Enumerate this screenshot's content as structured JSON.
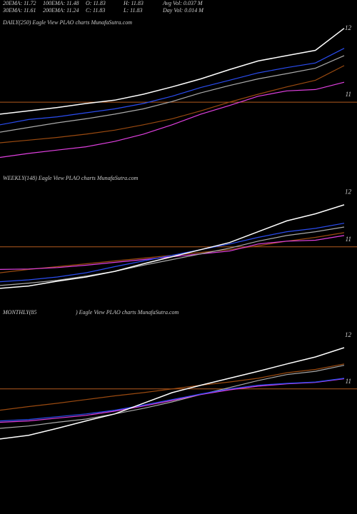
{
  "header": {
    "rows": [
      [
        "20EMA: 11.72",
        "100EMA: 11.48",
        "O: 11.83",
        "H: 11.83",
        "Avg Vol: 0.037 M"
      ],
      [
        "30EMA: 11.61",
        "200EMA: 11.24",
        "C: 11.83",
        "L: 11.83",
        "Day Vol: 0.014  M"
      ]
    ]
  },
  "chart_data": [
    {
      "type": "line",
      "title": "DAILY(250) Eagle  View  PLAO charts MunafaSutra.com",
      "categories": [
        null,
        null,
        null,
        null,
        null,
        null,
        null,
        null,
        null,
        null,
        null,
        null,
        null
      ],
      "ylim": [
        10.1,
        12.3
      ],
      "yticks": [
        11,
        12
      ],
      "reference_line": 11,
      "reference_color": "#b35a1f",
      "series": [
        {
          "color": "#9a4a10",
          "values": [
            10.39,
            10.43,
            10.47,
            10.52,
            10.58,
            10.66,
            10.75,
            10.87,
            11.0,
            11.12,
            11.23,
            11.33,
            11.55
          ]
        },
        {
          "color": "#e040e0",
          "values": [
            10.17,
            10.23,
            10.28,
            10.33,
            10.41,
            10.52,
            10.66,
            10.82,
            10.95,
            11.09,
            11.17,
            11.19,
            11.3
          ]
        },
        {
          "color": "#aaaaaa",
          "values": [
            10.55,
            10.62,
            10.69,
            10.75,
            10.82,
            10.9,
            11.01,
            11.14,
            11.25,
            11.35,
            11.43,
            11.51,
            11.7
          ]
        },
        {
          "color": "#2a4cf0",
          "values": [
            10.66,
            10.74,
            10.78,
            10.84,
            10.9,
            10.98,
            11.09,
            11.22,
            11.33,
            11.44,
            11.52,
            11.59,
            11.81
          ]
        },
        {
          "color": "#ffffff",
          "values": [
            10.82,
            10.87,
            10.92,
            10.98,
            11.03,
            11.12,
            11.23,
            11.35,
            11.49,
            11.62,
            11.7,
            11.78,
            12.11
          ]
        }
      ]
    },
    {
      "type": "line",
      "title": "WEEKLY(148) Eagle  View  PLAO charts MunafaSutra.com",
      "categories": [
        null,
        null,
        null,
        null,
        null,
        null,
        null,
        null,
        null,
        null,
        null,
        null,
        null
      ],
      "ylim": [
        9.8,
        12.6
      ],
      "yticks": [
        11,
        12
      ],
      "reference_line": 11,
      "reference_color": "#b35a1f",
      "series": [
        {
          "color": "#9a4a10",
          "values": [
            10.45,
            10.52,
            10.58,
            10.64,
            10.7,
            10.76,
            10.82,
            10.88,
            10.94,
            11.02,
            11.12,
            11.2,
            11.3
          ]
        },
        {
          "color": "#e040e0",
          "values": [
            10.52,
            10.53,
            10.56,
            10.61,
            10.67,
            10.73,
            10.79,
            10.85,
            10.91,
            11.06,
            11.12,
            11.14,
            11.24
          ]
        },
        {
          "color": "#aaaaaa",
          "values": [
            10.18,
            10.23,
            10.29,
            10.38,
            10.48,
            10.61,
            10.73,
            10.85,
            10.97,
            11.12,
            11.24,
            11.32,
            11.42
          ]
        },
        {
          "color": "#2a4cf0",
          "values": [
            10.26,
            10.3,
            10.36,
            10.45,
            10.58,
            10.7,
            10.82,
            10.94,
            11.06,
            11.2,
            11.32,
            11.39,
            11.5
          ]
        },
        {
          "color": "#ffffff",
          "values": [
            10.12,
            10.17,
            10.27,
            10.36,
            10.48,
            10.64,
            10.79,
            10.94,
            11.09,
            11.32,
            11.55,
            11.7,
            11.89
          ]
        }
      ]
    },
    {
      "type": "line",
      "title": "MONTHLY(85",
      "subtitle": ") Eagle  View  PLAO charts MunafaSutra.com",
      "categories": [
        null,
        null,
        null,
        null,
        null,
        null,
        null,
        null,
        null,
        null,
        null,
        null,
        null
      ],
      "ylim": [
        8.3,
        12.8
      ],
      "yticks": [
        11,
        12
      ],
      "reference_line": 11,
      "reference_color": "#b35a1f",
      "series": [
        {
          "color": "#9a4a10",
          "values": [
            10.54,
            10.62,
            10.69,
            10.77,
            10.85,
            10.92,
            11.0,
            11.08,
            11.15,
            11.23,
            11.35,
            11.42,
            11.54
          ]
        },
        {
          "color": "#aaaaaa",
          "values": [
            10.15,
            10.2,
            10.28,
            10.35,
            10.46,
            10.58,
            10.72,
            10.88,
            11.03,
            11.18,
            11.31,
            11.38,
            11.51
          ]
        },
        {
          "color": "#e040e0",
          "values": [
            10.28,
            10.31,
            10.37,
            10.43,
            10.52,
            10.63,
            10.75,
            10.88,
            10.98,
            11.06,
            11.11,
            11.14,
            11.22
          ]
        },
        {
          "color": "#2a4cf0",
          "values": [
            10.31,
            10.34,
            10.4,
            10.46,
            10.54,
            10.65,
            10.77,
            10.89,
            11.0,
            11.08,
            11.12,
            11.15,
            11.23
          ]
        },
        {
          "color": "#ffffff",
          "values": [
            9.92,
            10.0,
            10.15,
            10.31,
            10.46,
            10.69,
            10.92,
            11.08,
            11.23,
            11.38,
            11.54,
            11.69,
            11.89
          ]
        }
      ]
    }
  ]
}
